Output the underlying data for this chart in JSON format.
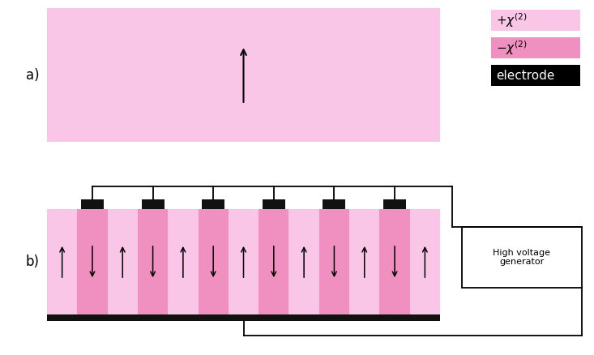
{
  "bg_color": "#ffffff",
  "light_pink": "#f9c6e8",
  "dark_pink": "#f090c0",
  "electrode_color": "#111111",
  "panel_a_label": "a)",
  "panel_b_label": "b)",
  "legend_plus_color": "#f9c6e8",
  "legend_minus_color": "#f090c0",
  "legend_electrode_color": "#000000",
  "legend_plus_text": "+\\chi^{(2)}",
  "legend_minus_text": "-\\chi^{(2)}",
  "legend_electrode_text": "electrode",
  "hvg_text": "High voltage\ngenerator",
  "n_periods": 6,
  "fig_width": 7.33,
  "fig_height": 4.38
}
